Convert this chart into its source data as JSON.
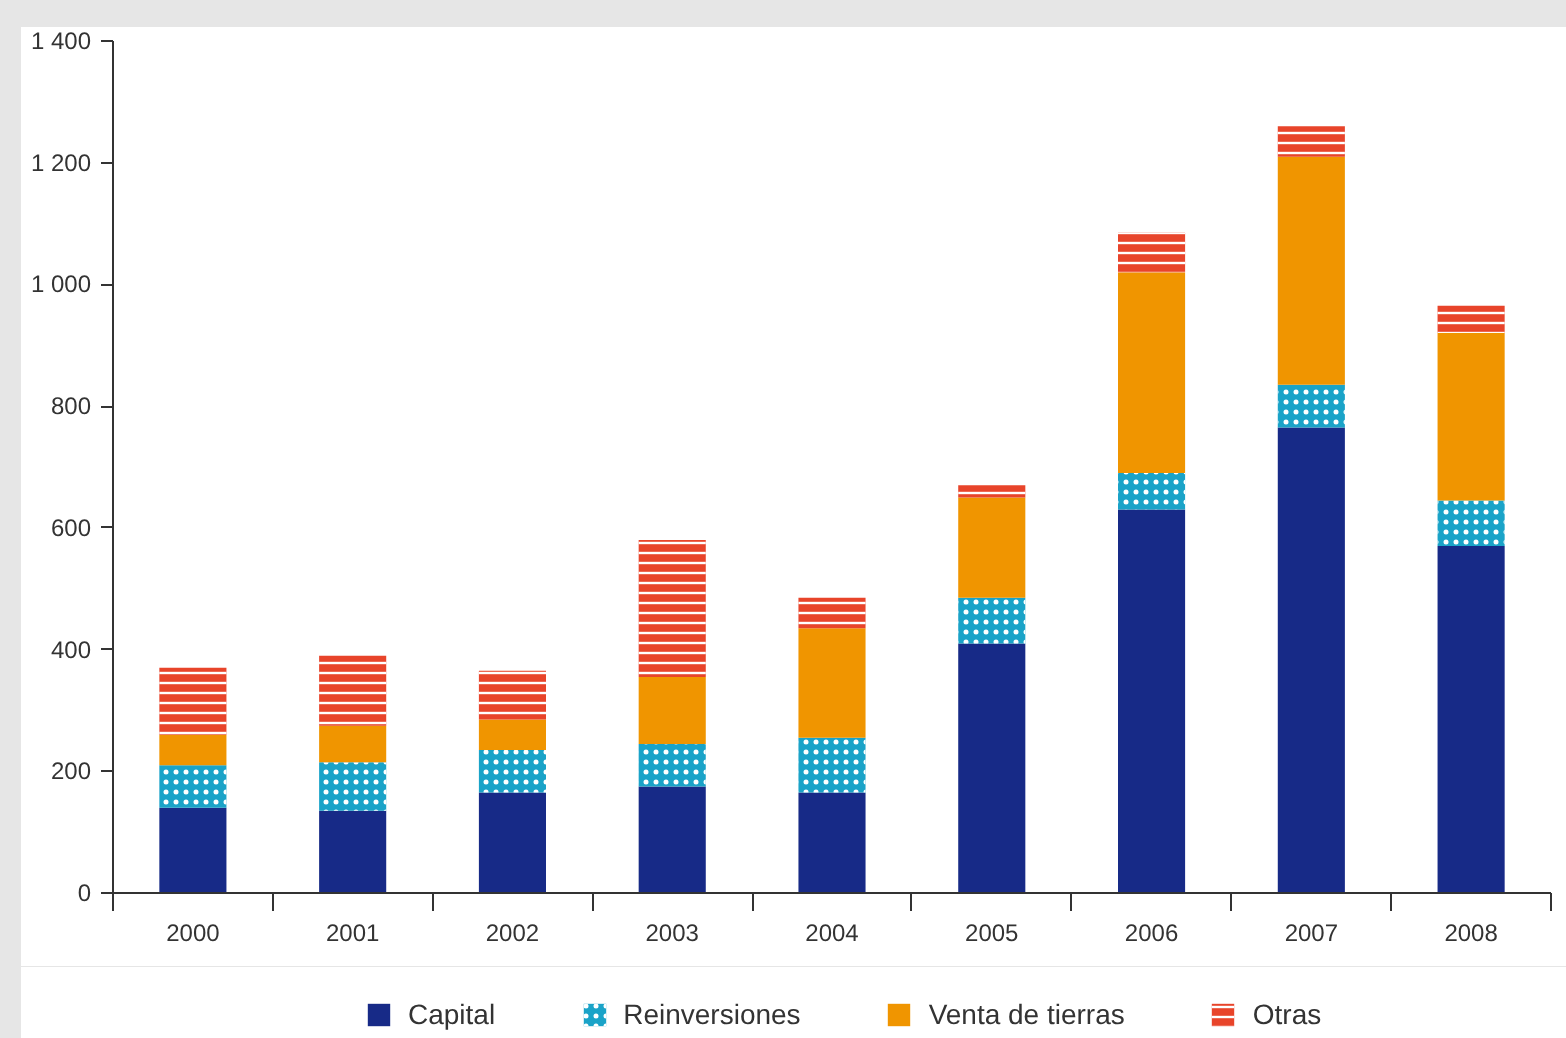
{
  "chart_data": {
    "type": "bar",
    "stacked": true,
    "categories": [
      "2000",
      "2001",
      "2002",
      "2003",
      "2004",
      "2005",
      "2006",
      "2007",
      "2008"
    ],
    "series": [
      {
        "name": "Capital",
        "color": "#172a87",
        "values": [
          140,
          135,
          165,
          175,
          165,
          410,
          630,
          765,
          570
        ]
      },
      {
        "name": "Reinversiones",
        "color": "#1aa3c8",
        "values": [
          70,
          80,
          70,
          70,
          90,
          75,
          60,
          70,
          75
        ]
      },
      {
        "name": "Venta de tierras",
        "color": "#f09500",
        "values": [
          50,
          60,
          50,
          110,
          180,
          165,
          330,
          375,
          275
        ]
      },
      {
        "name": "Otras",
        "color": "#e8442a",
        "values": [
          110,
          115,
          80,
          225,
          50,
          20,
          65,
          50,
          45
        ]
      }
    ],
    "ylim": [
      0,
      1400
    ],
    "yticks": [
      0,
      200,
      400,
      600,
      800,
      {
        "value": 1000,
        "label": "1 000"
      },
      {
        "value": 1200,
        "label": "1 200"
      },
      {
        "value": 1400,
        "label": "1 400"
      }
    ],
    "legend": "bottom",
    "grid": false
  }
}
